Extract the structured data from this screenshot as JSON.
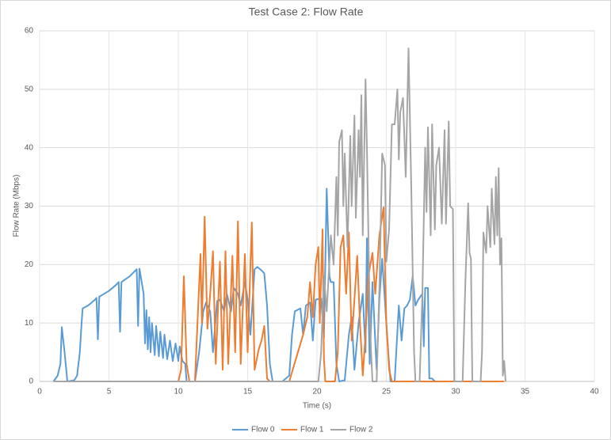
{
  "chart_data": {
    "type": "line",
    "title": "Test Case 2: Flow Rate",
    "x_label": "Time (s)",
    "y_label": "Flow Rate (Mbps)",
    "xlim": [
      0,
      40
    ],
    "xticks": [
      0,
      5,
      10,
      15,
      20,
      25,
      30,
      35,
      40
    ],
    "ylim": [
      0,
      60
    ],
    "yticks": [
      0,
      10,
      20,
      30,
      40,
      50,
      60
    ],
    "grid": true,
    "legend": "bottom",
    "series": [
      {
        "name": "Flow 0",
        "color": "#5b9bd5",
        "x": [
          1.0,
          1.3,
          1.5,
          1.6,
          1.8,
          2.0,
          2.5,
          2.7,
          2.9,
          3.0,
          3.1,
          3.5,
          4.0,
          4.1,
          4.2,
          4.3,
          5.0,
          5.5,
          5.7,
          5.8,
          5.9,
          6.5,
          7.0,
          7.1,
          7.2,
          7.5,
          7.6,
          7.7,
          7.8,
          7.9,
          8.0,
          8.1,
          8.3,
          8.4,
          8.6,
          8.7,
          8.9,
          9.0,
          9.2,
          9.4,
          9.6,
          9.8,
          10.0,
          10.1,
          10.3,
          10.5,
          10.6,
          11.2,
          11.5,
          11.8,
          12.0,
          12.3,
          12.5,
          12.8,
          13.0,
          13.3,
          13.5,
          13.8,
          14.0,
          14.3,
          14.5,
          14.8,
          15.0,
          15.2,
          15.5,
          15.7,
          16.0,
          16.2,
          16.4,
          16.6,
          16.8,
          17.5,
          18.0,
          18.2,
          18.4,
          18.8,
          19.0,
          19.2,
          19.5,
          19.7,
          19.9,
          20.3,
          20.5,
          20.7,
          20.9,
          21.0,
          21.2,
          21.4,
          21.6,
          22.0,
          22.3,
          22.5,
          22.7,
          23.0,
          23.3,
          23.5,
          23.6,
          23.8,
          24.0,
          24.3,
          24.5,
          24.7,
          25.0,
          25.2,
          25.3,
          25.6,
          25.9,
          26.1,
          26.3,
          26.5,
          26.7,
          26.9,
          27.1,
          27.3,
          27.6,
          27.7,
          27.8,
          28.0,
          28.1,
          28.3,
          28.5
        ],
        "values": [
          0,
          1,
          3,
          9.3,
          5,
          0,
          0.2,
          1,
          5,
          9,
          12.5,
          13,
          14,
          14.3,
          7.2,
          14.5,
          15.5,
          16.5,
          17,
          8.5,
          17,
          18,
          19.2,
          9.5,
          19.3,
          15,
          6.5,
          12.2,
          5.5,
          11,
          5,
          10,
          4.5,
          9.5,
          4.3,
          8.5,
          4,
          8,
          3.8,
          7,
          3.5,
          6.5,
          3.5,
          6,
          3.5,
          3,
          0,
          0,
          5,
          12,
          13.5,
          12,
          5,
          13.8,
          14,
          12,
          15,
          12,
          16,
          15,
          13,
          17,
          14,
          8,
          19.2,
          19.6,
          19,
          18.5,
          13,
          3,
          0,
          0,
          1,
          8,
          12,
          12.5,
          8,
          13,
          13.5,
          7,
          14,
          14.2,
          7.5,
          33,
          18,
          17,
          17,
          3,
          0,
          0.2,
          8,
          11,
          2,
          10,
          15,
          5,
          24.5,
          3,
          17,
          2,
          14,
          21,
          10,
          3,
          0,
          0,
          13,
          7,
          12.5,
          13,
          14,
          18,
          13,
          14,
          15,
          6,
          16,
          16,
          0.5,
          0.5,
          0
        ]
      },
      {
        "name": "Flow 1",
        "color": "#ed7d31",
        "x": [
          1.0,
          10.0,
          10.2,
          10.4,
          10.6,
          10.8,
          11.2,
          11.4,
          11.6,
          11.7,
          11.9,
          12.1,
          12.3,
          12.5,
          12.7,
          13.0,
          13.2,
          13.4,
          13.6,
          13.9,
          14.1,
          14.3,
          14.5,
          14.8,
          15.0,
          15.3,
          15.5,
          15.8,
          16.0,
          16.2,
          16.4,
          16.6,
          18.0,
          18.5,
          19.0,
          19.3,
          19.5,
          19.7,
          19.9,
          20.1,
          20.2,
          20.4,
          20.5,
          20.6,
          21.3,
          21.5,
          21.7,
          21.9,
          22.1,
          22.3,
          22.5,
          22.7,
          22.9,
          23.1,
          23.3,
          23.5,
          23.7,
          24.0,
          24.2,
          24.5,
          24.8,
          25.0,
          25.2,
          25.4,
          33.5
        ],
        "values": [
          0,
          0,
          2,
          18,
          3,
          0,
          0,
          11,
          21.8,
          10,
          28.2,
          9,
          15,
          22.3,
          3,
          20.5,
          2,
          22.3,
          3,
          21.5,
          5,
          27.4,
          3,
          21.8,
          5,
          27.2,
          2,
          5.5,
          7,
          9.5,
          0.5,
          0,
          0,
          4,
          8,
          11,
          17,
          11,
          20,
          23,
          10,
          26,
          4,
          0,
          0,
          5,
          23,
          25,
          15,
          25.5,
          7,
          14,
          21.5,
          10,
          1,
          8,
          18,
          22,
          15,
          25,
          29.8,
          10,
          2,
          0,
          0
        ]
      },
      {
        "name": "Flow 2",
        "color": "#a5a5a5",
        "x": [
          1.0,
          20.1,
          20.3,
          20.5,
          20.7,
          21.0,
          21.2,
          21.4,
          21.5,
          21.6,
          21.8,
          21.9,
          22.0,
          22.2,
          22.4,
          22.5,
          22.7,
          22.8,
          23.0,
          23.1,
          23.2,
          23.3,
          23.5,
          23.6,
          23.8,
          23.9,
          24.0,
          24.3,
          24.5,
          24.7,
          24.9,
          25.0,
          25.2,
          25.4,
          25.6,
          25.8,
          25.9,
          26.0,
          26.2,
          26.4,
          26.6,
          26.8,
          27.0,
          27.1,
          27.4,
          27.6,
          27.8,
          27.9,
          28.0,
          28.2,
          28.3,
          28.5,
          28.6,
          28.8,
          29.0,
          29.2,
          29.3,
          29.5,
          29.6,
          29.8,
          29.9,
          30.5,
          30.7,
          30.9,
          31.0,
          31.1,
          31.2,
          31.8,
          31.9,
          32.0,
          32.2,
          32.3,
          32.5,
          32.6,
          32.8,
          32.9,
          33.0,
          33.1,
          33.2,
          33.3,
          33.4,
          33.5,
          33.6
        ],
        "values": [
          0,
          0,
          5,
          18,
          12,
          25,
          20,
          35,
          25,
          41,
          43,
          30,
          39,
          23,
          42,
          30,
          45.5,
          28,
          43,
          35,
          49,
          25,
          51.7,
          40,
          12,
          5,
          0,
          0,
          16,
          39,
          37,
          20.5,
          26,
          44,
          44,
          50,
          38,
          46,
          48.5,
          35,
          57,
          33,
          5,
          0,
          0,
          15,
          40,
          29,
          43.5,
          25,
          44,
          26,
          37,
          40,
          27,
          43,
          27,
          44.5,
          30,
          29.5,
          0,
          0,
          17,
          30.5,
          22,
          21,
          0,
          0,
          5,
          25.5,
          22,
          30,
          23,
          33,
          23.5,
          35,
          25,
          36.5,
          20,
          24.5,
          1,
          3.5,
          0
        ]
      }
    ]
  }
}
